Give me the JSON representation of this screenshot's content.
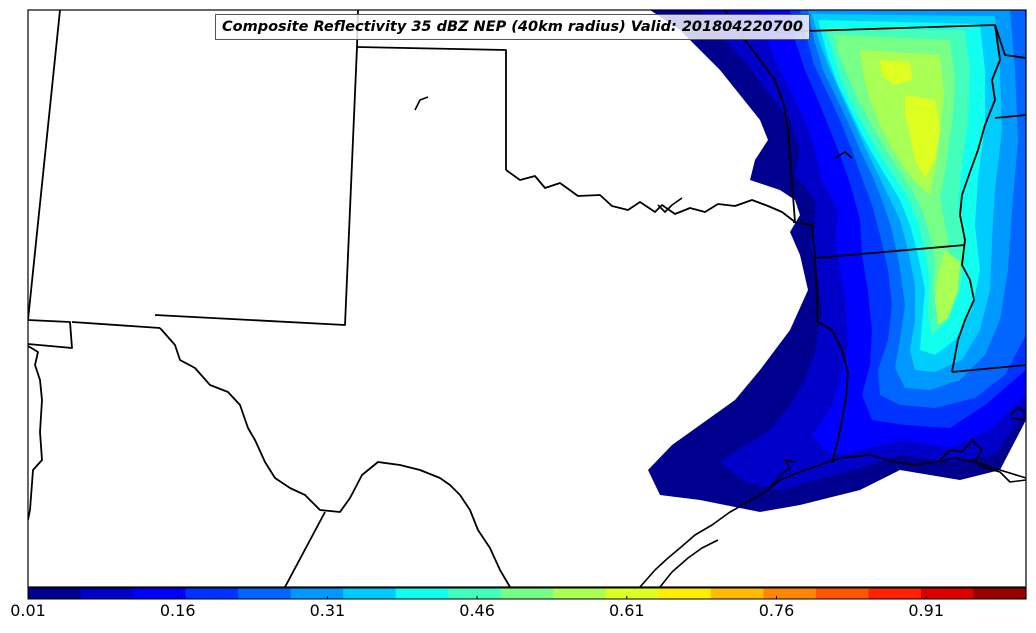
{
  "title": "Composite Reflectivity 35 dBZ NEP (40km radius) Valid: 201804220700",
  "colorbar": {
    "ticks": [
      "0.01",
      "0.16",
      "0.31",
      "0.46",
      "0.61",
      "0.76",
      "0.91"
    ],
    "range": [
      0.01,
      1.01
    ],
    "colors": [
      "#00008f",
      "#0000c8",
      "#0000ff",
      "#0033ff",
      "#0066ff",
      "#0099ff",
      "#00ccff",
      "#11ffee",
      "#44ffbb",
      "#77ff88",
      "#aaff55",
      "#ddff22",
      "#ffee00",
      "#ffbb00",
      "#ff8800",
      "#ff5500",
      "#ff2200",
      "#dd0000",
      "#990000"
    ]
  }
}
